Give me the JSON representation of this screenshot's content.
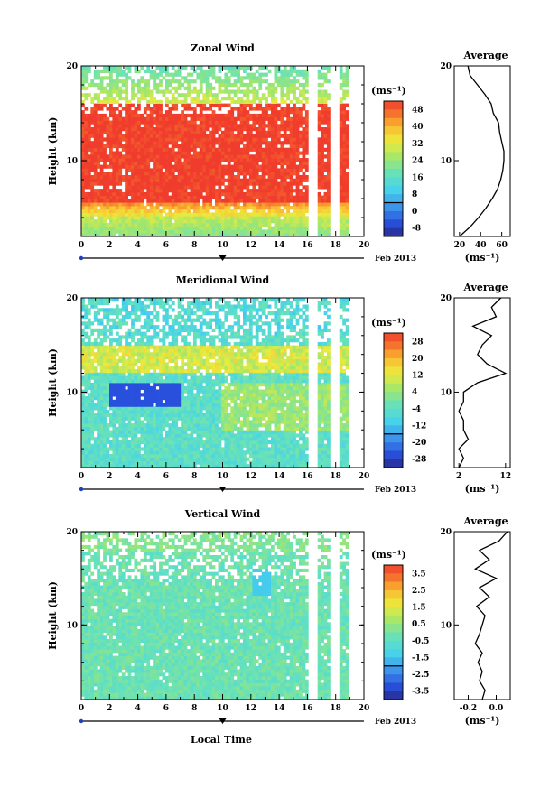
{
  "figure": {
    "xlabel": "Local Time",
    "date_label": "Feb 2013",
    "ylabel": "Height (km)",
    "avg_title": "Average",
    "unit": "(ms⁻¹)"
  },
  "chart_data": [
    {
      "type": "heatmap",
      "title": "Zonal Wind",
      "xlabel": "Local Time",
      "ylabel": "Height (km)",
      "xlim": [
        0,
        20
      ],
      "ylim": [
        2,
        20
      ],
      "xticks": [
        0,
        2,
        4,
        6,
        8,
        10,
        12,
        14,
        16,
        18,
        20
      ],
      "yticks": [
        10,
        20
      ],
      "colorbar": {
        "label": "(ms⁻¹)",
        "ticks": [
          "48",
          "40",
          "32",
          "24",
          "16",
          "8",
          "0",
          "-8"
        ],
        "range": [
          -10,
          50
        ]
      },
      "data_gaps_local_time": [
        [
          16.1,
          16.8
        ],
        [
          17.7,
          18.2
        ]
      ],
      "data_end_local_time": 18.8,
      "profile": {
        "title": "Average",
        "xlabel": "(ms⁻¹)",
        "xticks": [
          "20",
          "40",
          "60"
        ],
        "xlim": [
          15,
          68
        ],
        "height": [
          2,
          3,
          4,
          5,
          6,
          7,
          8,
          9,
          10,
          11,
          12,
          13,
          14,
          15,
          16,
          17,
          18,
          19,
          20
        ],
        "values": [
          20,
          30,
          38,
          45,
          51,
          56,
          59,
          61,
          62,
          62,
          60,
          58,
          57,
          52,
          50,
          44,
          37,
          30,
          28
        ]
      }
    },
    {
      "type": "heatmap",
      "title": "Meridional Wind",
      "xlabel": "Local Time",
      "ylabel": "Height (km)",
      "xlim": [
        0,
        20
      ],
      "ylim": [
        2,
        20
      ],
      "xticks": [
        0,
        2,
        4,
        6,
        8,
        10,
        12,
        14,
        16,
        18,
        20
      ],
      "yticks": [
        10,
        20
      ],
      "colorbar": {
        "label": "(ms⁻¹)",
        "ticks": [
          "28",
          "20",
          "12",
          "4",
          "-4",
          "-12",
          "-20",
          "-28"
        ],
        "range": [
          -30,
          30
        ]
      },
      "data_gaps_local_time": [
        [
          16.1,
          16.8
        ],
        [
          17.7,
          18.2
        ]
      ],
      "data_end_local_time": 18.8,
      "profile": {
        "title": "Average",
        "xlabel": "(ms⁻¹)",
        "xticks": [
          "2",
          "12"
        ],
        "xlim": [
          1,
          13
        ],
        "height": [
          2,
          3,
          4,
          5,
          6,
          7,
          8,
          9,
          10,
          11,
          12,
          13,
          14,
          15,
          16,
          17,
          18,
          19,
          20
        ],
        "values": [
          2,
          3,
          2,
          4,
          3,
          3,
          2,
          3,
          3,
          6,
          12,
          8,
          6,
          7,
          9,
          5,
          10,
          9,
          11
        ]
      }
    },
    {
      "type": "heatmap",
      "title": "Vertical Wind",
      "xlabel": "Local Time",
      "ylabel": "Height (km)",
      "xlim": [
        0,
        20
      ],
      "ylim": [
        2,
        20
      ],
      "xticks": [
        0,
        2,
        4,
        6,
        8,
        10,
        12,
        14,
        16,
        18,
        20
      ],
      "yticks": [
        10,
        20
      ],
      "colorbar": {
        "label": "(ms⁻¹)",
        "ticks": [
          "3.5",
          "2.5",
          "1.5",
          "0.5",
          "-0.5",
          "-1.5",
          "-2.5",
          "-3.5"
        ],
        "range": [
          -4,
          4
        ]
      },
      "data_gaps_local_time": [
        [
          16.1,
          16.8
        ],
        [
          17.7,
          18.2
        ]
      ],
      "data_end_local_time": 18.8,
      "profile": {
        "title": "Average",
        "xlabel": "(ms⁻¹)",
        "xticks": [
          "-0.2",
          "0.0"
        ],
        "xlim": [
          -0.3,
          0.1
        ],
        "height": [
          2,
          3,
          4,
          5,
          6,
          7,
          8,
          9,
          10,
          11,
          12,
          13,
          14,
          15,
          16,
          17,
          18,
          19,
          20
        ],
        "values": [
          -0.1,
          -0.08,
          -0.12,
          -0.1,
          -0.13,
          -0.1,
          -0.15,
          -0.12,
          -0.1,
          -0.08,
          -0.14,
          -0.05,
          -0.12,
          0.0,
          -0.15,
          -0.05,
          -0.12,
          0.02,
          0.08
        ]
      }
    }
  ]
}
